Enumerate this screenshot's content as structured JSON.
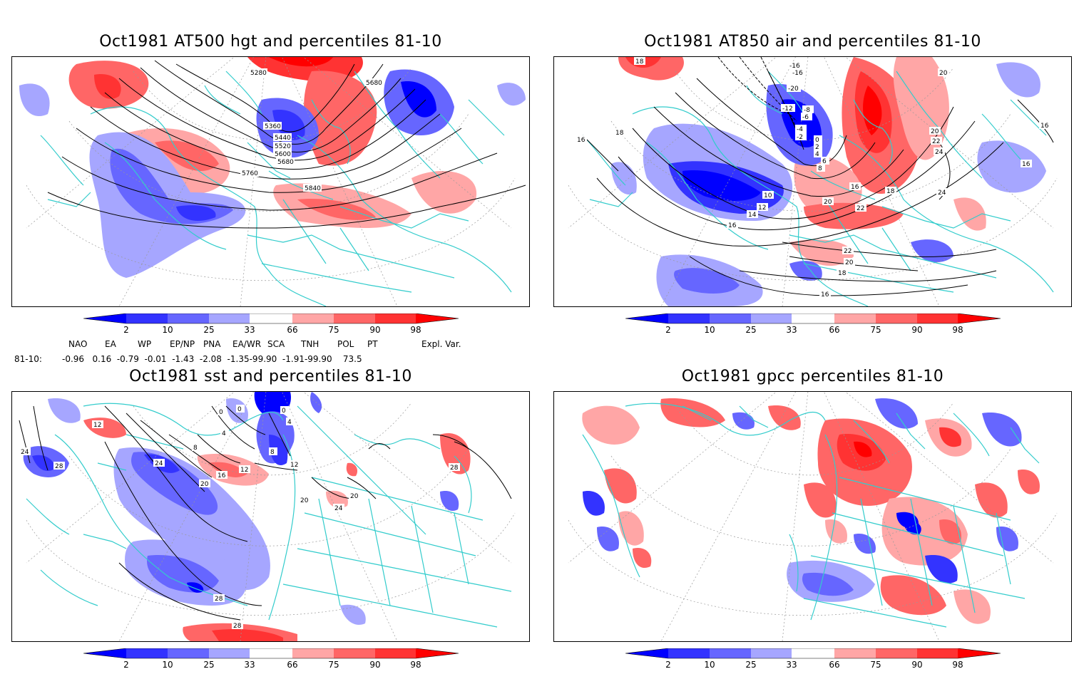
{
  "panels": [
    {
      "title": "Oct1981 AT500 hgt and percentiles 81-10",
      "contour_labels": [
        "5280",
        "5680",
        "5360",
        "5440",
        "5520",
        "5600",
        "5680",
        "5760",
        "5840"
      ]
    },
    {
      "title": "Oct1981 AT850 air and percentiles 81-10",
      "contour_labels": [
        "18",
        "-16",
        "-16",
        "-20",
        "-12",
        "-8",
        "-6",
        "-4",
        "-2",
        "0",
        "2",
        "4",
        "6",
        "8",
        "16",
        "18",
        "20",
        "20",
        "22",
        "24",
        "16",
        "16",
        "24",
        "10",
        "12",
        "14",
        "16",
        "16",
        "18",
        "20",
        "22",
        "22",
        "20",
        "18",
        "16"
      ]
    },
    {
      "title": "Oct1981 sst and percentiles 81-10",
      "contour_labels": [
        "12",
        "0",
        "0",
        "0",
        "4",
        "4",
        "8",
        "8",
        "12",
        "12",
        "16",
        "20",
        "24",
        "24",
        "28",
        "28",
        "28",
        "24",
        "20",
        "20",
        "28"
      ]
    },
    {
      "title": "Oct1981 gpcc percentiles 81-10",
      "contour_labels": []
    }
  ],
  "colorbar": {
    "labels": [
      "2",
      "10",
      "25",
      "33",
      "66",
      "75",
      "90",
      "98"
    ],
    "colors": {
      "below2": "#0000ff",
      "b2_10": "#3333ff",
      "b10_25": "#6666ff",
      "b25_33": "#a6a6ff",
      "a66_75": "#ffa6a6",
      "a75_90": "#ff6666",
      "a90_98": "#ff3333",
      "above98": "#ff0000"
    }
  },
  "indices": {
    "headers": [
      "NAO",
      "EA",
      "WP",
      "EP/NP",
      "PNA",
      "EA/WR",
      "SCA",
      "TNH",
      "POL",
      "PT",
      "Expl. Var."
    ],
    "row_label": "81-10:",
    "values_text": "-0.96   0.16  -0.79  -0.01  -1.43  -2.08  -1.35-99.90  -1.91-99.90    73.5"
  },
  "colors": {
    "coast": "#33cccc",
    "contour": "#000000",
    "grid": "#999999"
  }
}
